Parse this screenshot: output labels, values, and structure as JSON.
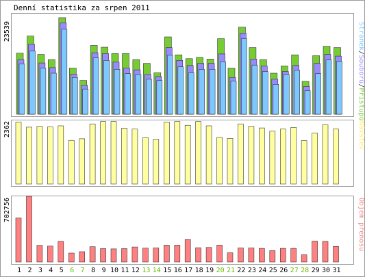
{
  "page": {
    "title": "Denní statistika za srpen 2011"
  },
  "colors": {
    "background": "#ffffff",
    "frame": "#999999",
    "axis_text": "#000000",
    "weekend_text": "#66bb00"
  },
  "chart_data": [
    {
      "type": "bar",
      "name": "traffic",
      "title": "Denní statistika za srpen 2011",
      "categories": [
        "1",
        "2",
        "3",
        "4",
        "5",
        "6",
        "7",
        "8",
        "9",
        "10",
        "11",
        "12",
        "13",
        "14",
        "15",
        "16",
        "17",
        "18",
        "19",
        "20",
        "21",
        "22",
        "23",
        "24",
        "25",
        "26",
        "27",
        "28",
        "29",
        "30",
        "31"
      ],
      "weekend_days": [
        "6",
        "7",
        "13",
        "14",
        "20",
        "21",
        "27",
        "28"
      ],
      "ymax_label": "23539",
      "ylim": [
        0,
        23539
      ],
      "legend_text": [
        "Stránek",
        "/",
        "Souborů",
        "/",
        "Přístupů"
      ],
      "legend_colors": [
        "#7dc8ff",
        "#333333",
        "#9a8aff",
        "#333333",
        "#77cc33"
      ],
      "series": [
        {
          "name": "Přístupů",
          "color": "#77cc33",
          "values": [
            14300,
            18300,
            14000,
            12800,
            22600,
            10800,
            7900,
            16100,
            15700,
            14200,
            14200,
            12800,
            11900,
            9700,
            18100,
            13900,
            13000,
            13300,
            12900,
            17700,
            10800,
            20400,
            15600,
            12800,
            9600,
            11300,
            13900,
            7700,
            13700,
            15900,
            15600
          ]
        },
        {
          "name": "Souborů",
          "color": "#9a8aff",
          "values": [
            12800,
            16400,
            12000,
            10900,
            21400,
            9400,
            6800,
            14400,
            14200,
            12200,
            10800,
            10400,
            9300,
            8800,
            15600,
            12600,
            11400,
            11900,
            11900,
            14100,
            8600,
            19000,
            12900,
            11300,
            8200,
            10000,
            11400,
            6500,
            11900,
            14000,
            13600
          ]
        },
        {
          "name": "Stránek",
          "color": "#7dc8ff",
          "values": [
            11800,
            14800,
            10800,
            9600,
            19900,
            8600,
            5900,
            13200,
            12600,
            10500,
            9500,
            9300,
            8200,
            7900,
            13800,
            11100,
            9700,
            10500,
            10500,
            12300,
            7800,
            17700,
            11500,
            10000,
            7000,
            9300,
            10300,
            5500,
            9500,
            12700,
            12400
          ]
        }
      ]
    },
    {
      "type": "bar",
      "name": "visits",
      "categories": [
        "1",
        "2",
        "3",
        "4",
        "5",
        "6",
        "7",
        "8",
        "9",
        "10",
        "11",
        "12",
        "13",
        "14",
        "15",
        "16",
        "17",
        "18",
        "19",
        "20",
        "21",
        "22",
        "23",
        "24",
        "25",
        "26",
        "27",
        "28",
        "29",
        "30",
        "31"
      ],
      "ymax_label": "2362",
      "ylim": [
        0,
        2362
      ],
      "legend_text": [
        "Návštěv"
      ],
      "legend_colors": [
        "#ffee66"
      ],
      "series": [
        {
          "name": "Návštěv",
          "color": "#ffffa0",
          "values": [
            2300,
            2110,
            2140,
            2120,
            2160,
            1620,
            1680,
            2230,
            2320,
            2320,
            2070,
            2040,
            1720,
            1660,
            2300,
            2320,
            2180,
            2320,
            2160,
            1730,
            1690,
            2230,
            2140,
            2080,
            1960,
            2040,
            2100,
            1610,
            1890,
            2200,
            2040
          ]
        }
      ]
    },
    {
      "type": "bar",
      "name": "transfer",
      "categories": [
        "1",
        "2",
        "3",
        "4",
        "5",
        "6",
        "7",
        "8",
        "9",
        "10",
        "11",
        "12",
        "13",
        "14",
        "15",
        "16",
        "17",
        "18",
        "19",
        "20",
        "21",
        "22",
        "23",
        "24",
        "25",
        "26",
        "27",
        "28",
        "29",
        "30",
        "31"
      ],
      "ymax_label": "702756",
      "ylim": [
        0,
        702756
      ],
      "legend_text": [
        "Objem přenosu"
      ],
      "legend_colors": [
        "#f08888"
      ],
      "series": [
        {
          "name": "Objem přenosu",
          "color": "#ff8080",
          "values": [
            470000,
            702756,
            178000,
            170000,
            220000,
            95000,
            110000,
            163000,
            143000,
            140000,
            143000,
            160000,
            148000,
            150000,
            180000,
            180000,
            240000,
            152000,
            155000,
            180000,
            98000,
            150000,
            150000,
            146000,
            121000,
            146000,
            146000,
            77000,
            223000,
            220000,
            166000
          ]
        }
      ]
    }
  ]
}
